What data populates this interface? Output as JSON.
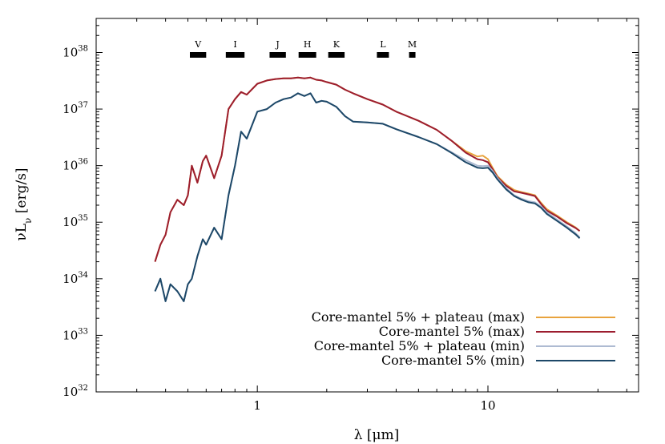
{
  "chart_data": {
    "type": "line",
    "xlabel": "λ [μm]",
    "ylabel": "νL",
    "ylabel_sub": "ν",
    "ylabel_unit": " [erg/s]",
    "x_scale": "log",
    "y_scale": "log",
    "xlim": [
      0.2,
      45
    ],
    "ylim": [
      1e+32,
      4e+38
    ],
    "x_ticks": [
      {
        "value": 1,
        "label": "1"
      },
      {
        "value": 10,
        "label": "10"
      }
    ],
    "y_ticks": [
      {
        "value": 1e+32,
        "base": "10",
        "exp": "32"
      },
      {
        "value": 1e+33,
        "base": "10",
        "exp": "33"
      },
      {
        "value": 1e+34,
        "base": "10",
        "exp": "34"
      },
      {
        "value": 1e+35,
        "base": "10",
        "exp": "35"
      },
      {
        "value": 1e+36,
        "base": "10",
        "exp": "36"
      },
      {
        "value": 1e+37,
        "base": "10",
        "exp": "37"
      },
      {
        "value": 1e+38,
        "base": "10",
        "exp": "38"
      }
    ],
    "grid": false,
    "legend_position": "bottom-right",
    "photometric_bands": [
      {
        "name": "V",
        "range": [
          0.51,
          0.6
        ]
      },
      {
        "name": "I",
        "range": [
          0.73,
          0.88
        ]
      },
      {
        "name": "J",
        "range": [
          1.13,
          1.33
        ]
      },
      {
        "name": "H",
        "range": [
          1.51,
          1.8
        ]
      },
      {
        "name": "K",
        "range": [
          2.03,
          2.39
        ]
      },
      {
        "name": "L",
        "range": [
          3.3,
          3.72
        ]
      },
      {
        "name": "M",
        "range": [
          4.55,
          4.85
        ]
      }
    ],
    "series": [
      {
        "name": "Core-mantel 5% + plateau (max)",
        "color": "#e8a33d",
        "x": [
          0.36,
          0.38,
          0.4,
          0.42,
          0.45,
          0.48,
          0.5,
          0.52,
          0.55,
          0.58,
          0.6,
          0.65,
          0.7,
          0.75,
          0.8,
          0.85,
          0.9,
          1.0,
          1.1,
          1.2,
          1.3,
          1.4,
          1.5,
          1.6,
          1.7,
          1.8,
          1.9,
          2.0,
          2.2,
          2.4,
          2.6,
          3.0,
          3.5,
          4.0,
          5.0,
          6.0,
          7.0,
          8.0,
          9.0,
          9.5,
          10.0,
          10.5,
          11.0,
          12.0,
          13.0,
          14.0,
          15.0,
          16.0,
          17.0,
          18.0,
          20.0,
          22.0,
          24.0,
          25.0
        ],
        "y": [
          2e+34,
          4e+34,
          6e+34,
          1.5e+35,
          2.5e+35,
          2e+35,
          3e+35,
          1e+36,
          5e+35,
          1.2e+36,
          1.5e+36,
          6e+35,
          1.5e+36,
          1e+37,
          1.5e+37,
          2e+37,
          1.8e+37,
          2.8e+37,
          3.2e+37,
          3.4e+37,
          3.5e+37,
          3.5e+37,
          3.6e+37,
          3.5e+37,
          3.6e+37,
          3.3e+37,
          3.2e+37,
          3e+37,
          2.7e+37,
          2.2e+37,
          1.9e+37,
          1.5e+37,
          1.2e+37,
          9e+36,
          6.2e+36,
          4.3e+36,
          2.7e+36,
          1.8e+36,
          1.45e+36,
          1.5e+36,
          1.3e+36,
          9e+35,
          6.5e+35,
          4.6e+35,
          3.7e+35,
          3.4e+35,
          3.2e+35,
          3e+35,
          2.2e+35,
          1.7e+35,
          1.3e+35,
          1e+35,
          8.1e+34,
          7e+34
        ]
      },
      {
        "name": "Core-mantel 5% (max)",
        "color": "#9c1d2f",
        "x": [
          0.36,
          0.38,
          0.4,
          0.42,
          0.45,
          0.48,
          0.5,
          0.52,
          0.55,
          0.58,
          0.6,
          0.65,
          0.7,
          0.75,
          0.8,
          0.85,
          0.9,
          1.0,
          1.1,
          1.2,
          1.3,
          1.4,
          1.5,
          1.6,
          1.7,
          1.8,
          1.9,
          2.0,
          2.2,
          2.4,
          2.6,
          3.0,
          3.5,
          4.0,
          5.0,
          6.0,
          7.0,
          8.0,
          9.0,
          9.5,
          10.0,
          10.5,
          11.0,
          12.0,
          13.0,
          14.0,
          15.0,
          16.0,
          17.0,
          18.0,
          20.0,
          22.0,
          24.0,
          25.0
        ],
        "y": [
          2e+34,
          4e+34,
          6e+34,
          1.5e+35,
          2.5e+35,
          2e+35,
          3e+35,
          1e+36,
          5e+35,
          1.2e+36,
          1.5e+36,
          6e+35,
          1.5e+36,
          1e+37,
          1.5e+37,
          2e+37,
          1.8e+37,
          2.8e+37,
          3.2e+37,
          3.4e+37,
          3.5e+37,
          3.5e+37,
          3.6e+37,
          3.5e+37,
          3.6e+37,
          3.3e+37,
          3.2e+37,
          3e+37,
          2.7e+37,
          2.2e+37,
          1.9e+37,
          1.5e+37,
          1.2e+37,
          9e+36,
          6.2e+36,
          4.3e+36,
          2.7e+36,
          1.7e+36,
          1.3e+36,
          1.25e+36,
          1.15e+36,
          8.5e+35,
          6.2e+35,
          4.4e+35,
          3.5e+35,
          3.3e+35,
          3.1e+35,
          2.9e+35,
          2.1e+35,
          1.6e+35,
          1.25e+35,
          9.6e+34,
          7.9e+34,
          7e+34
        ]
      },
      {
        "name": "Core-mantel 5% + plateau (min)",
        "color": "#aebbd2",
        "x": [
          0.36,
          0.38,
          0.4,
          0.42,
          0.45,
          0.48,
          0.5,
          0.52,
          0.55,
          0.58,
          0.6,
          0.65,
          0.7,
          0.75,
          0.8,
          0.85,
          0.9,
          1.0,
          1.1,
          1.2,
          1.3,
          1.4,
          1.5,
          1.6,
          1.7,
          1.8,
          1.9,
          2.0,
          2.2,
          2.4,
          2.6,
          3.0,
          3.5,
          4.0,
          5.0,
          6.0,
          7.0,
          8.0,
          9.0,
          9.5,
          10.0,
          10.5,
          11.0,
          12.0,
          13.0,
          14.0,
          15.0,
          16.0,
          17.0,
          18.0,
          20.0,
          22.0,
          24.0,
          25.0
        ],
        "y": [
          6e+33,
          1e+34,
          4e+33,
          8e+33,
          6e+33,
          4e+33,
          8e+33,
          1e+34,
          2.5e+34,
          5e+34,
          4e+34,
          8e+34,
          5e+34,
          3e+35,
          1e+36,
          4e+36,
          3e+36,
          9e+36,
          1e+37,
          1.3e+37,
          1.5e+37,
          1.6e+37,
          1.9e+37,
          1.7e+37,
          1.9e+37,
          1.3e+37,
          1.4e+37,
          1.35e+37,
          1.1e+37,
          7.5e+36,
          6e+36,
          5.8e+36,
          5.5e+36,
          4.4e+36,
          3.2e+36,
          2.4e+36,
          1.7e+36,
          1.25e+36,
          1e+36,
          9.8e+35,
          1e+36,
          8e+35,
          6e+35,
          4e+35,
          3e+35,
          2.6e+35,
          2.35e+35,
          2.25e+35,
          1.9e+35,
          1.5e+35,
          1.1e+35,
          8.4e+34,
          6.4e+34,
          5.4e+34
        ]
      },
      {
        "name": "Core-mantel 5% (min)",
        "color": "#1d4868",
        "x": [
          0.36,
          0.38,
          0.4,
          0.42,
          0.45,
          0.48,
          0.5,
          0.52,
          0.55,
          0.58,
          0.6,
          0.65,
          0.7,
          0.75,
          0.8,
          0.85,
          0.9,
          1.0,
          1.1,
          1.2,
          1.3,
          1.4,
          1.5,
          1.6,
          1.7,
          1.8,
          1.9,
          2.0,
          2.2,
          2.4,
          2.6,
          3.0,
          3.5,
          4.0,
          5.0,
          6.0,
          7.0,
          8.0,
          9.0,
          9.5,
          10.0,
          10.5,
          11.0,
          12.0,
          13.0,
          14.0,
          15.0,
          16.0,
          17.0,
          18.0,
          20.0,
          22.0,
          24.0,
          25.0
        ],
        "y": [
          6e+33,
          1e+34,
          4e+33,
          8e+33,
          6e+33,
          4e+33,
          8e+33,
          1e+34,
          2.5e+34,
          5e+34,
          4e+34,
          8e+34,
          5e+34,
          3e+35,
          1e+36,
          4e+36,
          3e+36,
          9e+36,
          1e+37,
          1.3e+37,
          1.5e+37,
          1.6e+37,
          1.9e+37,
          1.7e+37,
          1.9e+37,
          1.3e+37,
          1.4e+37,
          1.35e+37,
          1.1e+37,
          7.5e+36,
          6e+36,
          5.8e+36,
          5.5e+36,
          4.4e+36,
          3.2e+36,
          2.4e+36,
          1.65e+36,
          1.15e+36,
          9.2e+35,
          9e+35,
          9.2e+35,
          7.5e+35,
          5.7e+35,
          3.8e+35,
          2.9e+35,
          2.5e+35,
          2.25e+35,
          2.15e+35,
          1.8e+35,
          1.4e+35,
          1.05e+35,
          8e+34,
          6.1e+34,
          5.2e+34
        ]
      }
    ]
  }
}
